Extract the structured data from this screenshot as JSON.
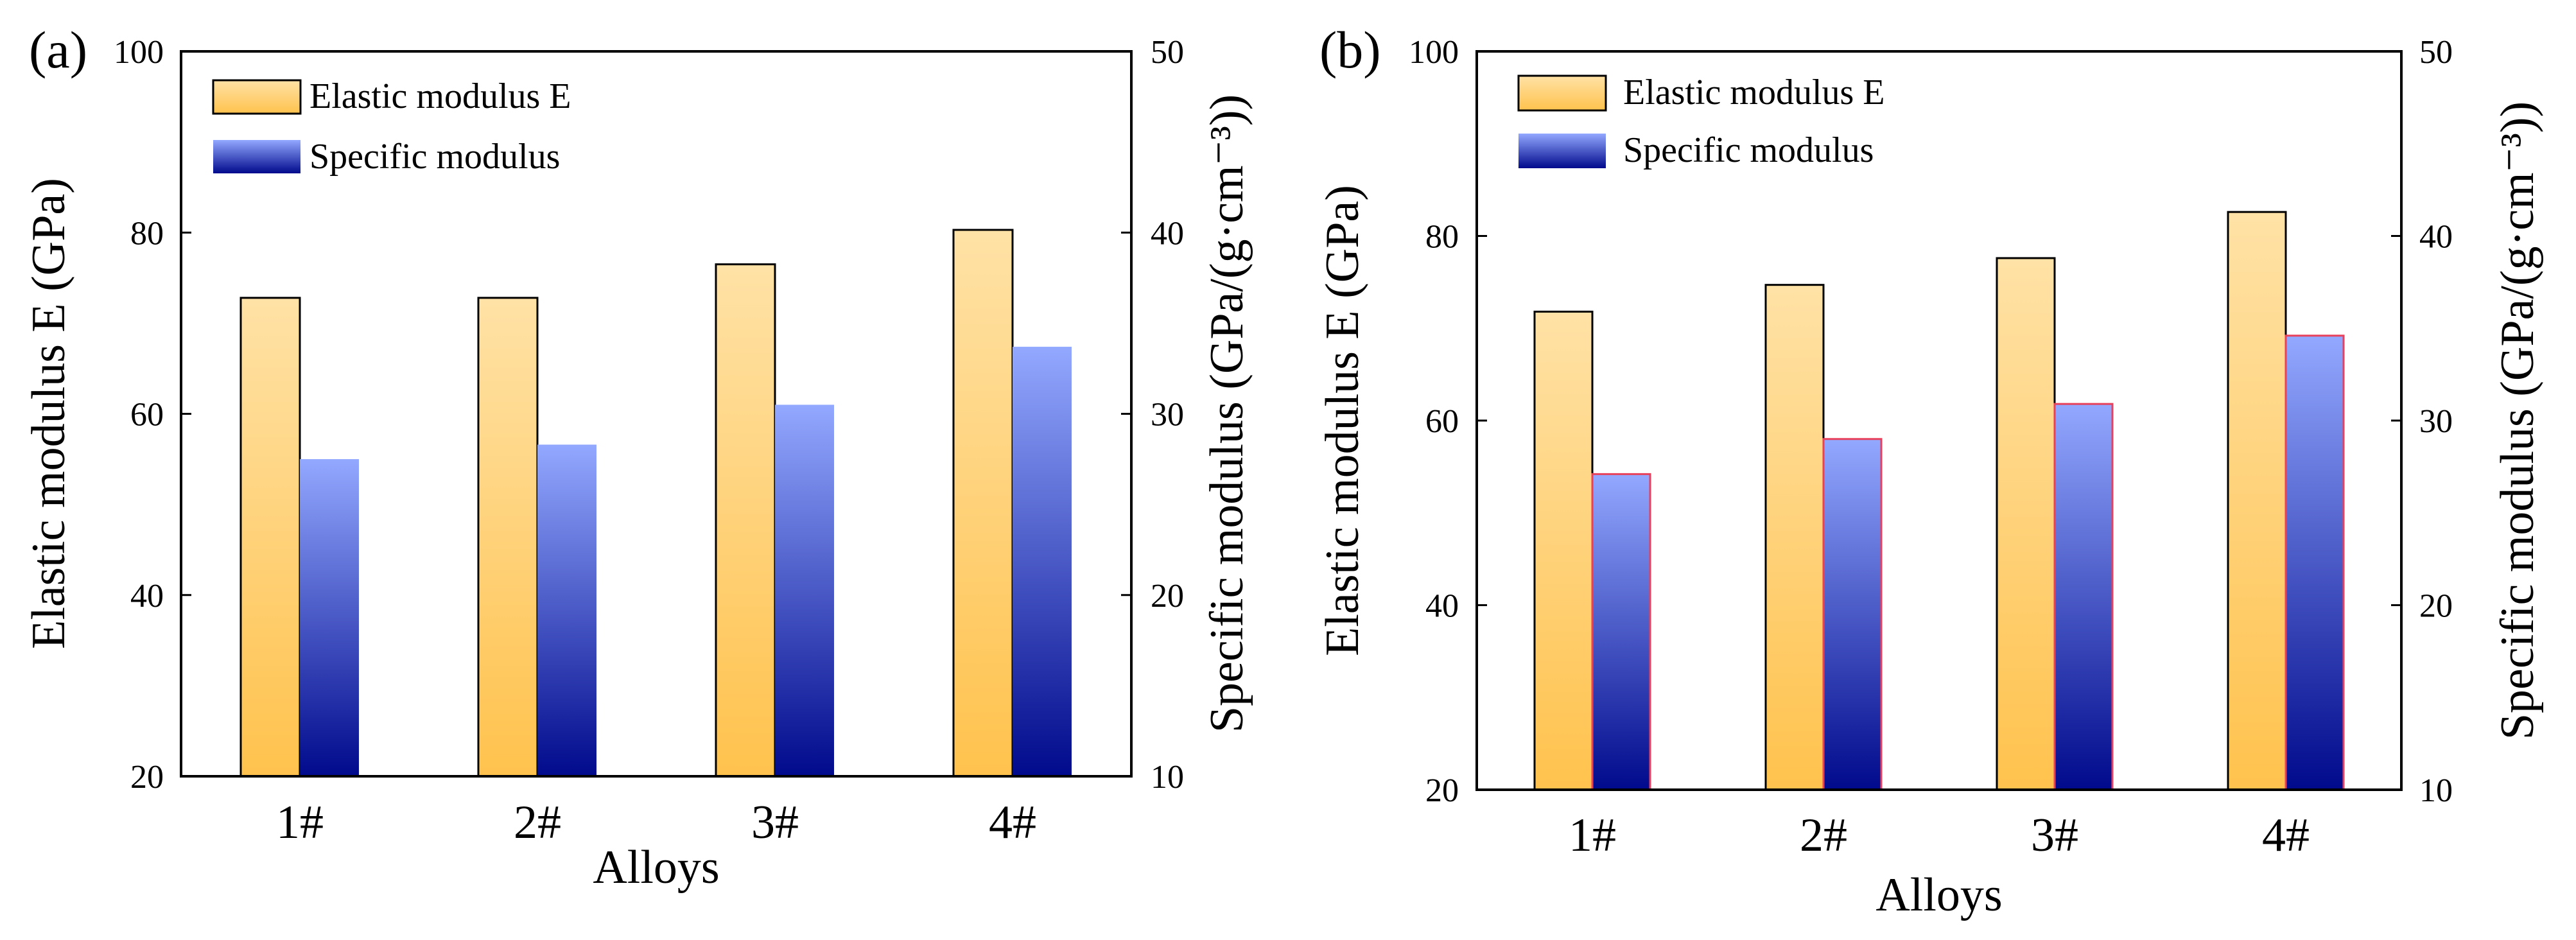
{
  "colors": {
    "elastic_top": "#ffe2a6",
    "elastic_bottom": "#ffc24d",
    "specific_top": "#93a8ff",
    "specific_bottom": "#000a8c",
    "bar_stroke": "#000000",
    "specific_stroke_b": "#e8415b"
  },
  "chart_data": [
    {
      "type": "bar",
      "panel_label": "(a)",
      "categories": [
        "1#",
        "2#",
        "3#",
        "4#"
      ],
      "xlabel": "Alloys",
      "ylabel_left": "Elastic modulus E (GPa)",
      "ylabel_right": "Specific modulus (GPa/(g·cm⁻³))",
      "ylim_left": [
        20,
        100
      ],
      "ylim_right": [
        10,
        50
      ],
      "yticks_left": [
        20,
        40,
        60,
        80,
        100
      ],
      "yticks_right": [
        10,
        20,
        30,
        40,
        50
      ],
      "legend_position": "top-left",
      "series": [
        {
          "name": "Elastic modulus E",
          "axis": "left",
          "values": [
            72.8,
            72.8,
            76.5,
            80.3
          ]
        },
        {
          "name": "Specific modulus",
          "axis": "right",
          "values": [
            27.5,
            28.3,
            30.5,
            33.7
          ]
        }
      ]
    },
    {
      "type": "bar",
      "panel_label": "(b)",
      "categories": [
        "1#",
        "2#",
        "3#",
        "4#"
      ],
      "xlabel": "Alloys",
      "ylabel_left": "Elastic modulus E (GPa)",
      "ylabel_right": "Specific modulus (GPa/(g·cm⁻³))",
      "ylim_left": [
        20,
        100
      ],
      "ylim_right": [
        10,
        50
      ],
      "yticks_left": [
        20,
        40,
        60,
        80,
        100
      ],
      "yticks_right": [
        10,
        20,
        30,
        40,
        50
      ],
      "legend_position": "top-left",
      "series": [
        {
          "name": "Elastic modulus E",
          "axis": "left",
          "values": [
            71.8,
            74.7,
            77.6,
            82.6
          ]
        },
        {
          "name": "Specific modulus",
          "axis": "right",
          "values": [
            27.1,
            29.0,
            30.9,
            34.6
          ]
        }
      ]
    }
  ]
}
